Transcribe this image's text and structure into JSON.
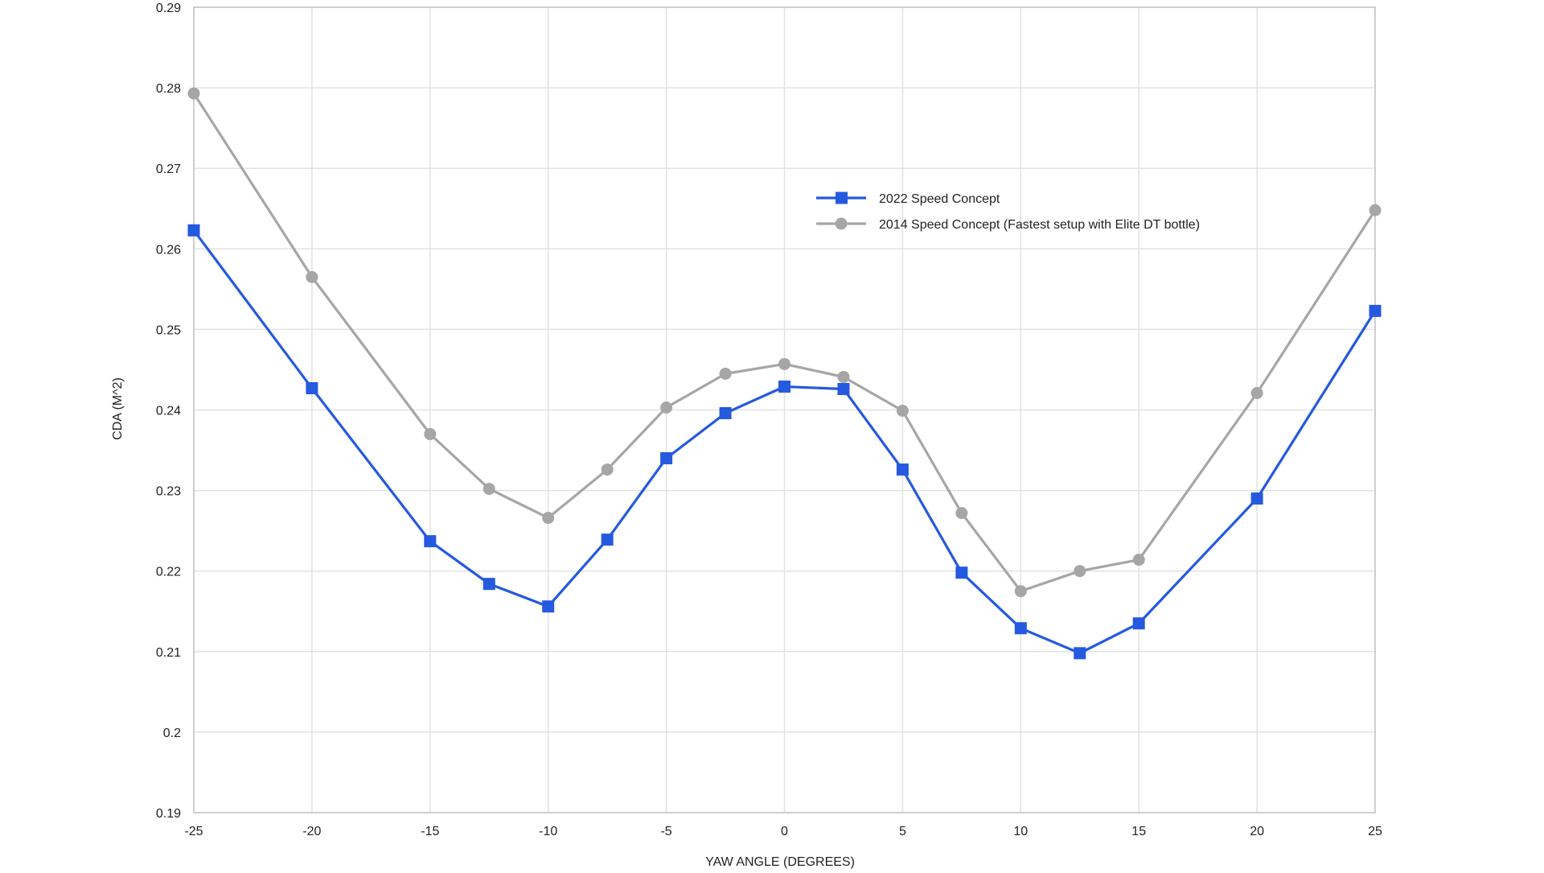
{
  "chart_data": {
    "type": "line",
    "title": "",
    "xlabel": "YAW ANGLE (DEGREES)",
    "ylabel": "CDA (M^2)",
    "xlim": [
      -25,
      25
    ],
    "ylim": [
      0.19,
      0.29
    ],
    "x_ticks": [
      "-25",
      "-20",
      "-15",
      "-10",
      "-5",
      "0",
      "5",
      "10",
      "15",
      "20",
      "25"
    ],
    "y_ticks": [
      "0.19",
      "0.2",
      "0.21",
      "0.22",
      "0.23",
      "0.24",
      "0.25",
      "0.26",
      "0.27",
      "0.28",
      "0.29"
    ],
    "grid": true,
    "legend_position": "top-right",
    "series": [
      {
        "name": "2022 Speed Concept",
        "color": "#2459e0",
        "marker": "square",
        "x": [
          -25,
          -20,
          -15,
          -12.5,
          -10,
          -7.5,
          -5,
          -2.5,
          0,
          2.5,
          5,
          7.5,
          10,
          12.5,
          15,
          20,
          25
        ],
        "values": [
          0.2623,
          0.2427,
          0.2237,
          0.2184,
          0.2156,
          0.2239,
          0.234,
          0.2396,
          0.2429,
          0.2426,
          0.2326,
          0.2198,
          0.2129,
          0.2098,
          0.2135,
          0.229,
          0.2523
        ]
      },
      {
        "name": "2014 Speed Concept (Fastest setup with Elite DT bottle)",
        "color": "#a6a6a6",
        "marker": "circle",
        "x": [
          -25,
          -20,
          -15,
          -12.5,
          -10,
          -7.5,
          -5,
          -2.5,
          0,
          2.5,
          5,
          7.5,
          10,
          12.5,
          15,
          20,
          25
        ],
        "values": [
          0.2793,
          0.2565,
          0.237,
          0.2302,
          0.2266,
          0.2326,
          0.2403,
          0.2445,
          0.2457,
          0.2441,
          0.2399,
          0.2272,
          0.2175,
          0.22,
          0.2214,
          0.2421,
          0.2648
        ]
      }
    ]
  }
}
